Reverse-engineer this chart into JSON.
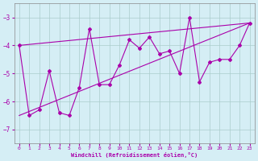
{
  "xlabel": "Windchill (Refroidissement éolien,°C)",
  "background_color": "#d5eef5",
  "grid_color": "#aacccc",
  "line_color": "#aa00aa",
  "x_data": [
    0,
    1,
    2,
    3,
    4,
    5,
    6,
    7,
    8,
    9,
    10,
    11,
    12,
    13,
    14,
    15,
    16,
    17,
    18,
    19,
    20,
    21,
    22,
    23
  ],
  "y_main": [
    -4.0,
    -6.5,
    -6.3,
    -4.9,
    -6.4,
    -6.5,
    -5.5,
    -3.4,
    -5.4,
    -5.4,
    -4.7,
    -3.8,
    -4.1,
    -3.7,
    -4.3,
    -4.2,
    -5.0,
    -3.0,
    -5.3,
    -4.6,
    -4.5,
    -4.5,
    -4.0,
    -3.2
  ],
  "trend1_x": [
    0,
    23
  ],
  "trend1_y": [
    -4.0,
    -3.2
  ],
  "trend2_x": [
    0,
    23
  ],
  "trend2_y": [
    -6.5,
    -3.2
  ],
  "ylim": [
    -7.5,
    -2.5
  ],
  "xlim": [
    -0.5,
    23.5
  ],
  "yticks": [
    -7,
    -6,
    -5,
    -4,
    -3
  ],
  "xticks": [
    0,
    1,
    2,
    3,
    4,
    5,
    6,
    7,
    8,
    9,
    10,
    11,
    12,
    13,
    14,
    15,
    16,
    17,
    18,
    19,
    20,
    21,
    22,
    23
  ]
}
